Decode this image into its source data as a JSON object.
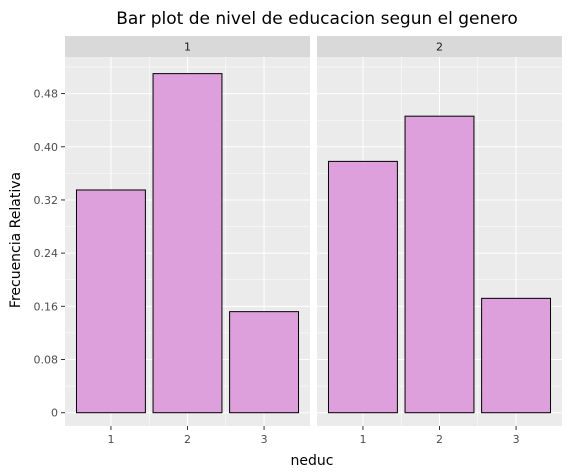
{
  "chart_data": {
    "type": "bar",
    "title": "Bar plot de nivel de educacion segun el genero",
    "xlabel": "neduc",
    "ylabel": "Frecuencia Relativa",
    "ylim": [
      -0.02,
      0.535
    ],
    "yticks": [
      "0",
      "0.08",
      "0.16",
      "0.24",
      "0.32",
      "0.40",
      "0.48"
    ],
    "categories": [
      "1",
      "2",
      "3"
    ],
    "grid": true,
    "bar_fill": "#dda0dd",
    "bar_stroke": "#000000",
    "panel_background": "#ebebeb",
    "strip_background": "#d9d9d9",
    "facets": [
      {
        "label": "1",
        "values": [
          0.335,
          0.51,
          0.152
        ]
      },
      {
        "label": "2",
        "values": [
          0.378,
          0.446,
          0.172
        ]
      }
    ]
  }
}
